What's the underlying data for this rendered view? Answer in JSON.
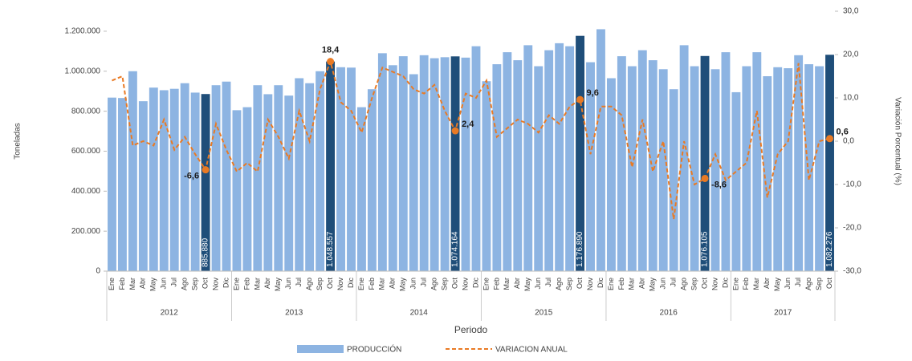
{
  "chart_data": {
    "type": "combo",
    "x_label": "Periodo",
    "y_label": "Toneladas",
    "y2_label": "Variación Porcentual (%)",
    "categories": [
      "Ene",
      "Feb",
      "Mar",
      "Abr",
      "May",
      "Jun",
      "Jul",
      "Ago",
      "Sep",
      "Oct",
      "Nov",
      "Dic",
      "Ene",
      "Feb",
      "Mar",
      "Abr",
      "May",
      "Jun",
      "Jul",
      "Ago",
      "Sep",
      "Oct",
      "Nov",
      "Dic",
      "Ene",
      "Feb",
      "Mar",
      "Abr",
      "May",
      "Jun",
      "Jul",
      "Ago",
      "Sep",
      "Oct",
      "Nov",
      "Dic",
      "Ene",
      "Feb",
      "Mar",
      "Abr",
      "May",
      "Jun",
      "Jul",
      "Ago",
      "Sep",
      "Oct",
      "Nov",
      "Dic",
      "Ene",
      "Feb",
      "Mar",
      "Abr",
      "May",
      "Jun",
      "Jul",
      "Ago",
      "Sep",
      "Oct",
      "Nov",
      "Dic",
      "Ene",
      "Feb",
      "Mar",
      "Abr",
      "May",
      "Jun",
      "Jul",
      "Ago",
      "Sep",
      "Oct"
    ],
    "groups": [
      "2012",
      "2013",
      "2014",
      "2015",
      "2016",
      "2017"
    ],
    "ylim": [
      0,
      1300000
    ],
    "yticks": [
      {
        "value": 0,
        "label": "0"
      },
      {
        "value": 200000,
        "label": "200.000"
      },
      {
        "value": 400000,
        "label": "400.000"
      },
      {
        "value": 600000,
        "label": "600.000"
      },
      {
        "value": 800000,
        "label": "800.000"
      },
      {
        "value": 1000000,
        "label": "1.000.000"
      },
      {
        "value": 1200000,
        "label": "1.200.000"
      }
    ],
    "y2lim": [
      -30,
      30
    ],
    "y2ticks": [
      {
        "value": -30,
        "label": "-30,0"
      },
      {
        "value": -20,
        "label": "-20,0"
      },
      {
        "value": -10,
        "label": "-10,0"
      },
      {
        "value": 0,
        "label": "0,0"
      },
      {
        "value": 10,
        "label": "10,0"
      },
      {
        "value": 20,
        "label": "20,0"
      },
      {
        "value": 30,
        "label": "30,0"
      }
    ],
    "series": [
      {
        "name": "PRODUCCIÓN",
        "type": "bar",
        "color": "#8db4e2",
        "highlight_color": "#1f4e79",
        "values": [
          868000,
          866000,
          1000000,
          850000,
          918000,
          905000,
          912000,
          940000,
          893000,
          885880,
          930000,
          948000,
          805000,
          820000,
          930000,
          885000,
          930000,
          878000,
          965000,
          940000,
          1000000,
          1048557,
          1020000,
          1018000,
          820000,
          910000,
          1090000,
          1030000,
          1075000,
          985000,
          1080000,
          1065000,
          1070000,
          1074164,
          1068000,
          1125000,
          950000,
          1035000,
          1095000,
          1055000,
          1130000,
          1025000,
          1105000,
          1140000,
          1125000,
          1176890,
          1045000,
          1210000,
          965000,
          1075000,
          1025000,
          1105000,
          1055000,
          1010000,
          910000,
          1130000,
          1025000,
          1076105,
          1010000,
          1095000,
          895000,
          1025000,
          1095000,
          975000,
          1020000,
          1015000,
          1080000,
          1035000,
          1025000,
          1082276
        ],
        "value_labels": [
          null,
          null,
          null,
          null,
          null,
          null,
          null,
          null,
          null,
          "885.880",
          null,
          null,
          null,
          null,
          null,
          null,
          null,
          null,
          null,
          null,
          null,
          "1.048.557",
          null,
          null,
          null,
          null,
          null,
          null,
          null,
          null,
          null,
          null,
          null,
          "1.074.164",
          null,
          null,
          null,
          null,
          null,
          null,
          null,
          null,
          null,
          null,
          null,
          "1.176.890",
          null,
          null,
          null,
          null,
          null,
          null,
          null,
          null,
          null,
          null,
          null,
          "1.076.105",
          null,
          null,
          null,
          null,
          null,
          null,
          null,
          null,
          null,
          null,
          null,
          "1.082.276"
        ]
      },
      {
        "name": "VARIACION ANUAL",
        "type": "line",
        "axis": "y2",
        "color": "#e97a24",
        "values": [
          14,
          15,
          -1,
          0,
          -1,
          5,
          -2,
          1,
          -3,
          -6.6,
          4,
          -2,
          -7,
          -5,
          -7,
          5,
          1,
          -4,
          7,
          0,
          12,
          18.4,
          9,
          7,
          2,
          10,
          17,
          16,
          15,
          12,
          11,
          13,
          7,
          2.4,
          11,
          10,
          14,
          1,
          3,
          5,
          4,
          2,
          6,
          4,
          8,
          9.6,
          -3,
          8,
          8,
          6,
          -6,
          5,
          -7,
          0,
          -18,
          0,
          -10,
          -8.6,
          -3,
          -9,
          -7,
          -5,
          7,
          -13,
          -3,
          0,
          18,
          -9,
          0,
          0.6
        ],
        "value_labels": [
          null,
          null,
          null,
          null,
          null,
          null,
          null,
          null,
          null,
          "-6,6",
          null,
          null,
          null,
          null,
          null,
          null,
          null,
          null,
          null,
          null,
          null,
          "18,4",
          null,
          null,
          null,
          null,
          null,
          null,
          null,
          null,
          null,
          null,
          null,
          "2,4",
          null,
          null,
          null,
          null,
          null,
          null,
          null,
          null,
          null,
          null,
          null,
          "9,6",
          null,
          null,
          null,
          null,
          null,
          null,
          null,
          null,
          null,
          null,
          null,
          "-8,6",
          null,
          null,
          null,
          null,
          null,
          null,
          null,
          null,
          null,
          null,
          null,
          "0,6"
        ]
      }
    ]
  }
}
